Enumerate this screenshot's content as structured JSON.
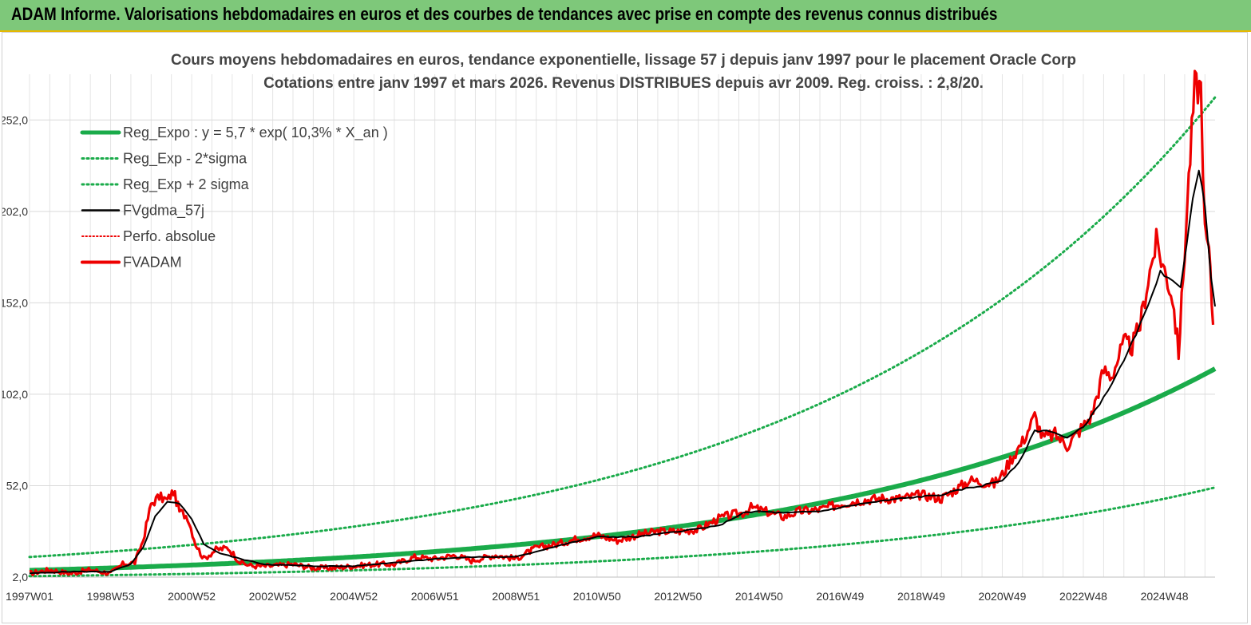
{
  "banner": {
    "title": "ADAM Informe. Valorisations hebdomadaires en euros et des courbes de tendances avec prise en compte des revenus connus distribués"
  },
  "chart_data": {
    "type": "line",
    "title": "Cours moyens hebdomadaires en euros, tendance exponentielle, lissage 57 j depuis janv 1997 pour le placement Oracle Corp",
    "subtitle": "Cotations entre janv 1997 et mars 2026. Revenus DISTRIBUES depuis avr 2009. Reg. croiss. : 2,8/20.",
    "x_tick_labels": [
      "1997W01",
      "1998W53",
      "2000W52",
      "2002W52",
      "2004W52",
      "2006W51",
      "2008W51",
      "2010W50",
      "2012W50",
      "2014W50",
      "2016W49",
      "2018W49",
      "2020W49",
      "2022W48",
      "2024W48"
    ],
    "x_tick_years": [
      1997,
      1999,
      2001,
      2003,
      2005,
      2007,
      2009,
      2011,
      2013,
      2015,
      2017,
      2019,
      2021,
      2023,
      2025
    ],
    "xlim": [
      1997.0,
      2026.25
    ],
    "y_tick_labels": [
      "2,0",
      "52,0",
      "102,0",
      "152,0",
      "202,0",
      "252,0"
    ],
    "y_tick_values": [
      2,
      52,
      102,
      152,
      202,
      252
    ],
    "ylim": [
      2,
      277
    ],
    "grid": true,
    "legend_position": "top-left",
    "colors": {
      "green": "#1aab4a",
      "black": "#000000",
      "red": "#ee0000",
      "banner": "#7ec87a",
      "banner_border": "#e8b800"
    },
    "regression": {
      "a": 5.7,
      "growth": 0.103,
      "sigma_low_factor": 0.44,
      "sigma_high_factor": 2.28
    },
    "legend": [
      {
        "label": "Reg_Expo : y = 5,7 * exp( 10,3% *  X_an )",
        "style": "green-thick"
      },
      {
        "label": "Reg_Exp - 2*sigma",
        "style": "green-dotted"
      },
      {
        "label": "Reg_Exp + 2 sigma",
        "style": "green-dotted"
      },
      {
        "label": "FVgdma_57j",
        "style": "black"
      },
      {
        "label": "Perfo. absolue",
        "style": "red-dotted"
      },
      {
        "label": "FVADAM",
        "style": "red-thick"
      }
    ],
    "series": [
      {
        "name": "FVADAM",
        "x": [
          1997.0,
          1997.5,
          1998.0,
          1998.5,
          1999.0,
          1999.3,
          1999.6,
          1999.8,
          2000.0,
          2000.2,
          2000.4,
          2000.55,
          2000.7,
          2000.9,
          2001.1,
          2001.3,
          2001.6,
          2001.9,
          2002.2,
          2002.5,
          2002.9,
          2003.5,
          2004.0,
          2004.5,
          2005.0,
          2005.5,
          2006.0,
          2006.5,
          2007.0,
          2007.5,
          2007.9,
          2008.5,
          2009.0,
          2009.5,
          2010.0,
          2010.5,
          2011.0,
          2011.5,
          2012.0,
          2012.5,
          2013.0,
          2013.5,
          2014.0,
          2014.3,
          2014.6,
          2014.8,
          2015.0,
          2015.3,
          2015.6,
          2016.0,
          2016.5,
          2017.0,
          2017.5,
          2018.0,
          2018.5,
          2019.0,
          2019.5,
          2020.0,
          2020.2,
          2020.5,
          2020.8,
          2021.0,
          2021.2,
          2021.5,
          2021.8,
          2022.0,
          2022.3,
          2022.6,
          2022.9,
          2023.2,
          2023.5,
          2023.7,
          2024.0,
          2024.2,
          2024.4,
          2024.6,
          2024.8,
          2025.0,
          2025.2,
          2025.35,
          2025.5,
          2025.6,
          2025.75,
          2025.9,
          2026.0,
          2026.1,
          2026.2
        ],
        "y": [
          4,
          6,
          4,
          6,
          4,
          9,
          10,
          22,
          42,
          46,
          44,
          49,
          38,
          35,
          20,
          12,
          17,
          18,
          10,
          8,
          8,
          9,
          7,
          7,
          8,
          9,
          9,
          13,
          12,
          14,
          11,
          14,
          12,
          18,
          20,
          23,
          25,
          22,
          25,
          27,
          27,
          28,
          34,
          36,
          37,
          40,
          39,
          37,
          35,
          38,
          39,
          42,
          44,
          45,
          45,
          47,
          45,
          52,
          55,
          54,
          53,
          58,
          66,
          76,
          90,
          78,
          80,
          74,
          82,
          90,
          115,
          112,
          130,
          128,
          140,
          165,
          185,
          170,
          155,
          125,
          180,
          220,
          270,
          270,
          190,
          180,
          140
        ]
      },
      {
        "name": "FVgdma_57j",
        "x": [
          1997.0,
          1998.0,
          1998.5,
          1999.0,
          1999.5,
          1999.8,
          2000.1,
          2000.4,
          2000.7,
          2001.0,
          2001.3,
          2001.7,
          2002.2,
          2002.8,
          2004.0,
          2005.0,
          2006.0,
          2007.0,
          2008.0,
          2009.0,
          2010.0,
          2011.0,
          2012.0,
          2013.0,
          2014.0,
          2014.6,
          2015.0,
          2015.6,
          2016.5,
          2017.5,
          2018.5,
          2019.5,
          2020.0,
          2020.5,
          2021.0,
          2021.4,
          2021.8,
          2022.2,
          2022.6,
          2023.0,
          2023.5,
          2024.0,
          2024.3,
          2024.6,
          2024.9,
          2025.1,
          2025.4,
          2025.55,
          2025.7,
          2025.85,
          2026.0,
          2026.15,
          2026.25
        ],
        "y": [
          4,
          5,
          5,
          5,
          9,
          18,
          35,
          43,
          42,
          34,
          20,
          15,
          12,
          9,
          8,
          8,
          10,
          12,
          13,
          13,
          19,
          24,
          24,
          27,
          30,
          37,
          38,
          37,
          38,
          42,
          45,
          47,
          50,
          52,
          55,
          64,
          82,
          82,
          78,
          84,
          100,
          120,
          135,
          150,
          170,
          165,
          160,
          185,
          210,
          225,
          205,
          165,
          150
        ]
      }
    ]
  }
}
